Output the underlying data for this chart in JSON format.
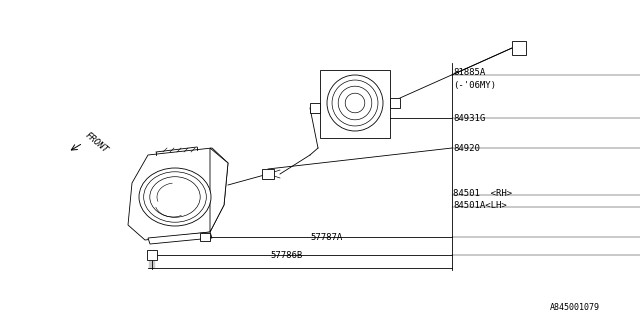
{
  "bg_color": "#ffffff",
  "line_color": "#000000",
  "text_color": "#000000",
  "figsize": [
    6.4,
    3.2
  ],
  "dpi": 100,
  "labels": {
    "81885A": "81885A",
    "06MY": "(-’06MY)",
    "84931G": "84931G",
    "84920": "84920",
    "84501_RH": "84501 <RH>",
    "84501A_LH": "84501A<LH>",
    "57787A": "57787A",
    "57786B": "57786B",
    "FRONT": "FRONT",
    "code": "A845001079"
  }
}
